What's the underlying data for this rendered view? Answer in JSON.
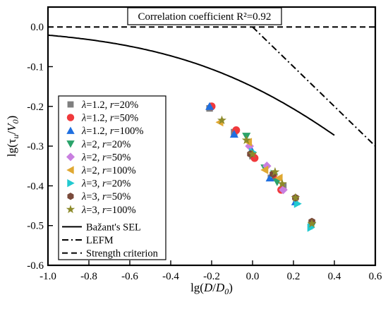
{
  "chart_data": {
    "type": "scatter",
    "annotation": "Correlation coefficient R²=0.92",
    "xlim": [
      -1.0,
      0.6
    ],
    "ylim": [
      -0.6,
      0.05
    ],
    "x_ticks": [
      -1.0,
      -0.8,
      -0.6,
      -0.4,
      -0.2,
      0.0,
      0.2,
      0.4,
      0.6
    ],
    "x_tick_labels": [
      "-1.0",
      "-0.8",
      "-0.6",
      "-0.4",
      "-0.2",
      "0.0",
      "0.2",
      "0.4",
      "0.6"
    ],
    "y_ticks": [
      0.0,
      -0.1,
      -0.2,
      -0.3,
      -0.4,
      -0.5,
      -0.6
    ],
    "y_tick_labels": [
      "0.0",
      "-0.1",
      "-0.2",
      "-0.3",
      "-0.4",
      "-0.5",
      "-0.6"
    ],
    "xlabel": "lg(D/D₀)",
    "ylabel": "lg(τu/V₀)",
    "legend_position": "left",
    "series": [
      {
        "name": "λ=1.2, r=20%",
        "lambda": "1.2",
        "r": "20%",
        "marker": "square",
        "color": "#7f7f7f",
        "points": [
          [
            -0.21,
            -0.205
          ],
          [
            -0.09,
            -0.265
          ],
          [
            0.0,
            -0.325
          ],
          [
            0.09,
            -0.38
          ],
          [
            0.15,
            -0.4
          ]
        ]
      },
      {
        "name": "λ=1.2, r=50%",
        "lambda": "1.2",
        "r": "50%",
        "marker": "circle",
        "color": "#f0393c",
        "points": [
          [
            -0.2,
            -0.2
          ],
          [
            -0.08,
            -0.26
          ],
          [
            0.01,
            -0.33
          ],
          [
            0.1,
            -0.375
          ],
          [
            0.14,
            -0.41
          ]
        ]
      },
      {
        "name": "λ=1.2, r=100%",
        "lambda": "1.2",
        "r": "100%",
        "marker": "triangle-up",
        "color": "#1f6fe0",
        "points": [
          [
            -0.21,
            -0.2
          ],
          [
            -0.09,
            -0.27
          ],
          [
            -0.005,
            -0.31
          ],
          [
            0.085,
            -0.38
          ],
          [
            0.21,
            -0.44
          ]
        ]
      },
      {
        "name": "λ=2, r=20%",
        "lambda": "2",
        "r": "20%",
        "marker": "triangle-down",
        "color": "#2aa36a",
        "points": [
          [
            -0.03,
            -0.275
          ],
          [
            0.06,
            -0.355
          ],
          [
            0.12,
            -0.39
          ],
          [
            0.29,
            -0.5
          ]
        ]
      },
      {
        "name": "λ=2, r=50%",
        "lambda": "2",
        "r": "50%",
        "marker": "diamond",
        "color": "#c97fe0",
        "points": [
          [
            -0.015,
            -0.3
          ],
          [
            0.07,
            -0.35
          ],
          [
            0.15,
            -0.41
          ]
        ]
      },
      {
        "name": "λ=2, r=100%",
        "lambda": "2",
        "r": "100%",
        "marker": "triangle-left",
        "color": "#e0a832",
        "points": [
          [
            -0.16,
            -0.24
          ],
          [
            -0.02,
            -0.29
          ],
          [
            0.06,
            -0.36
          ],
          [
            0.13,
            -0.38
          ]
        ]
      },
      {
        "name": "λ=3, r=20%",
        "lambda": "3",
        "r": "20%",
        "marker": "triangle-right",
        "color": "#22c9d0",
        "points": [
          [
            0.0,
            -0.315
          ],
          [
            0.105,
            -0.37
          ],
          [
            0.22,
            -0.445
          ],
          [
            0.285,
            -0.505
          ]
        ]
      },
      {
        "name": "λ=3, r=50%",
        "lambda": "3",
        "r": "50%",
        "marker": "hexagon",
        "color": "#7a4a3a",
        "points": [
          [
            -0.01,
            -0.32
          ],
          [
            0.1,
            -0.37
          ],
          [
            0.21,
            -0.43
          ],
          [
            0.29,
            -0.49
          ]
        ]
      },
      {
        "name": "λ=3, r=100%",
        "lambda": "3",
        "r": "100%",
        "marker": "star",
        "color": "#8c8a2a",
        "points": [
          [
            -0.15,
            -0.235
          ],
          [
            -0.03,
            -0.285
          ],
          [
            0.0,
            -0.32
          ],
          [
            0.11,
            -0.365
          ],
          [
            0.145,
            -0.395
          ],
          [
            0.21,
            -0.43
          ],
          [
            0.29,
            -0.495
          ]
        ]
      }
    ],
    "lines": [
      {
        "name": "Bažant's SEL",
        "style": "solid",
        "equation": "y = -0.5*log10(1 + 10^x)",
        "x_range": [
          -1.0,
          0.4
        ]
      },
      {
        "name": "LEFM",
        "style": "dashdot",
        "points": [
          [
            0.0,
            0.0
          ],
          [
            0.6,
            -0.3
          ]
        ]
      },
      {
        "name": "Strength criterion",
        "style": "dashed",
        "points": [
          [
            -1.0,
            0.0
          ],
          [
            0.6,
            0.0
          ]
        ]
      }
    ]
  }
}
